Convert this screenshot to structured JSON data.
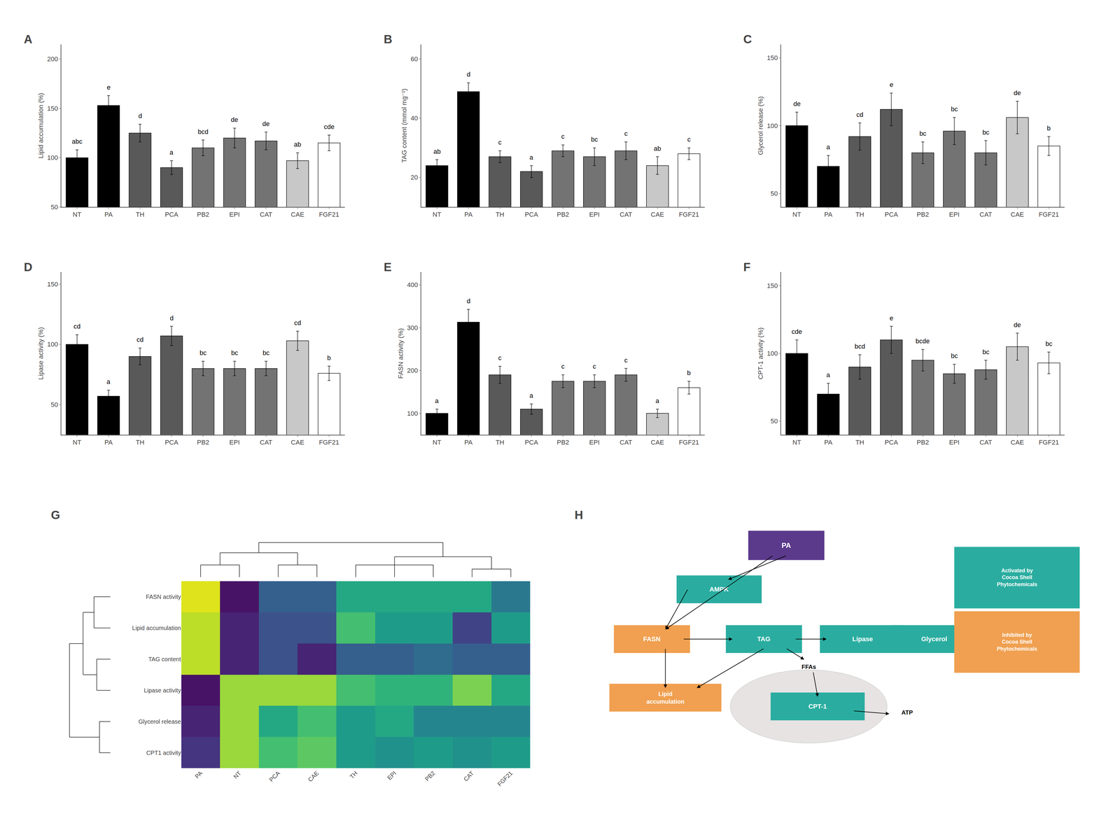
{
  "chart_data": [
    {
      "type": "bar",
      "title": "A",
      "ylabel": "Lipid accumulation (%)",
      "categories": [
        "NT",
        "PA",
        "TH",
        "PCA",
        "PB2",
        "EPI",
        "CAT",
        "CAE",
        "FGF21"
      ],
      "values": [
        100,
        153,
        125,
        90,
        110,
        120,
        117,
        97,
        115
      ],
      "errors": [
        8,
        10,
        9,
        7,
        8,
        10,
        9,
        8,
        8
      ],
      "annotations": [
        "abc",
        "e",
        "d",
        "a",
        "bcd",
        "de",
        "de",
        "ab",
        "cde"
      ],
      "colors": [
        "#000000",
        "#000000",
        "#595959",
        "#595959",
        "#737373",
        "#737373",
        "#737373",
        "#c8c8c8",
        "#ffffff"
      ],
      "ylim": [
        50,
        215
      ],
      "yticks": [
        50,
        100,
        150,
        200
      ],
      "grid": false
    },
    {
      "type": "bar",
      "title": "B",
      "ylabel": "TAG content (mmol mg⁻¹)",
      "categories": [
        "NT",
        "PA",
        "TH",
        "PCA",
        "PB2",
        "EPI",
        "CAT",
        "CAE",
        "FGF21"
      ],
      "values": [
        24,
        49,
        27,
        22,
        29,
        27,
        29,
        24,
        28
      ],
      "errors": [
        2,
        3,
        2,
        2,
        2,
        3,
        3,
        3,
        2
      ],
      "annotations": [
        "ab",
        "d",
        "c",
        "a",
        "c",
        "bc",
        "c",
        "ab",
        "c"
      ],
      "colors": [
        "#000000",
        "#000000",
        "#595959",
        "#595959",
        "#737373",
        "#737373",
        "#737373",
        "#c8c8c8",
        "#ffffff"
      ],
      "ylim": [
        10,
        65
      ],
      "yticks": [
        20,
        40,
        60
      ],
      "grid": false
    },
    {
      "type": "bar",
      "title": "C",
      "ylabel": "Glycerol release (%)",
      "categories": [
        "NT",
        "PA",
        "TH",
        "PCA",
        "PB2",
        "EPI",
        "CAT",
        "CAE",
        "FGF21"
      ],
      "values": [
        100,
        70,
        92,
        112,
        80,
        96,
        80,
        106,
        85
      ],
      "errors": [
        10,
        8,
        10,
        12,
        8,
        10,
        9,
        12,
        7
      ],
      "annotations": [
        "de",
        "a",
        "cd",
        "e",
        "bc",
        "bc",
        "bc",
        "de",
        "b"
      ],
      "colors": [
        "#000000",
        "#000000",
        "#595959",
        "#595959",
        "#737373",
        "#737373",
        "#737373",
        "#c8c8c8",
        "#ffffff"
      ],
      "ylim": [
        40,
        160
      ],
      "yticks": [
        50,
        100,
        150
      ],
      "grid": false
    },
    {
      "type": "bar",
      "title": "D",
      "ylabel": "Lipase activity (%)",
      "categories": [
        "NT",
        "PA",
        "TH",
        "PCA",
        "PB2",
        "EPI",
        "CAT",
        "CAE",
        "FGF21"
      ],
      "values": [
        100,
        57,
        90,
        107,
        80,
        80,
        80,
        103,
        76
      ],
      "errors": [
        8,
        5,
        7,
        8,
        6,
        6,
        6,
        8,
        6
      ],
      "annotations": [
        "cd",
        "a",
        "cd",
        "d",
        "bc",
        "bc",
        "bc",
        "cd",
        "b"
      ],
      "colors": [
        "#000000",
        "#000000",
        "#595959",
        "#595959",
        "#737373",
        "#737373",
        "#737373",
        "#c8c8c8",
        "#ffffff"
      ],
      "ylim": [
        25,
        160
      ],
      "yticks": [
        50,
        100,
        150
      ],
      "grid": false
    },
    {
      "type": "bar",
      "title": "E",
      "ylabel": "FASN activity (%)",
      "categories": [
        "NT",
        "PA",
        "TH",
        "PCA",
        "PB2",
        "EPI",
        "CAT",
        "CAE",
        "FGF21"
      ],
      "values": [
        100,
        313,
        190,
        110,
        175,
        175,
        190,
        100,
        160
      ],
      "errors": [
        10,
        30,
        20,
        12,
        15,
        15,
        15,
        10,
        15
      ],
      "annotations": [
        "a",
        "d",
        "c",
        "a",
        "c",
        "c",
        "c",
        "a",
        "b"
      ],
      "colors": [
        "#000000",
        "#000000",
        "#595959",
        "#595959",
        "#737373",
        "#737373",
        "#737373",
        "#c8c8c8",
        "#ffffff"
      ],
      "ylim": [
        50,
        430
      ],
      "yticks": [
        100,
        200,
        300,
        400
      ],
      "grid": false
    },
    {
      "type": "bar",
      "title": "F",
      "ylabel": "CPT-1 activity (%)",
      "categories": [
        "NT",
        "PA",
        "TH",
        "PCA",
        "PB2",
        "EPI",
        "CAT",
        "CAE",
        "FGF21"
      ],
      "values": [
        100,
        70,
        90,
        110,
        95,
        85,
        88,
        105,
        93
      ],
      "errors": [
        10,
        8,
        9,
        10,
        8,
        7,
        7,
        10,
        8
      ],
      "annotations": [
        "cde",
        "a",
        "bcd",
        "e",
        "bcde",
        "bc",
        "bc",
        "de",
        "bc"
      ],
      "colors": [
        "#000000",
        "#000000",
        "#595959",
        "#595959",
        "#737373",
        "#737373",
        "#737373",
        "#c8c8c8",
        "#ffffff"
      ],
      "ylim": [
        40,
        160
      ],
      "yticks": [
        50,
        100,
        150
      ],
      "grid": false
    },
    {
      "type": "heatmap",
      "title": "G",
      "x": [
        "PA",
        "NT",
        "PCA",
        "CAE",
        "TH",
        "EPI",
        "PB2",
        "CAT",
        "FGF21"
      ],
      "y": [
        "FASN activity",
        "Lipid accumulation",
        "TAG content",
        "Lipase activity",
        "Glycerol release",
        "CPT1 activity"
      ],
      "values": [
        [
          0.95,
          0.05,
          0.3,
          0.3,
          0.6,
          0.6,
          0.6,
          0.6,
          0.4
        ],
        [
          0.9,
          0.1,
          0.25,
          0.25,
          0.7,
          0.55,
          0.55,
          0.2,
          0.55
        ],
        [
          0.9,
          0.1,
          0.25,
          0.1,
          0.3,
          0.3,
          0.35,
          0.3,
          0.3
        ],
        [
          0.05,
          0.85,
          0.85,
          0.85,
          0.7,
          0.65,
          0.65,
          0.8,
          0.6
        ],
        [
          0.1,
          0.85,
          0.6,
          0.7,
          0.55,
          0.6,
          0.45,
          0.45,
          0.45
        ],
        [
          0.15,
          0.85,
          0.7,
          0.75,
          0.55,
          0.5,
          0.55,
          0.5,
          0.55
        ]
      ],
      "zlim": [
        0,
        1
      ],
      "color": "Viridis"
    },
    {
      "type": "diagram",
      "title": "H",
      "annotations": [
        "PA",
        "AMPK",
        "FASN",
        "TAG",
        "Lipase",
        "Glycerol",
        "Lipid\naccumulation",
        "CPT-1",
        "FFAs",
        "ATP",
        "Activated by\nCocoa Shell\nPhytochemicals",
        "Inhibited by\nCocoa Shell\nPhytochemicals"
      ],
      "colors": [
        "#5b3a8c",
        "#2aada0",
        "#f0a050",
        "#2aada0",
        "#2aada0",
        "#2aada0",
        "#f0a050",
        "#2aada0",
        "#000000",
        "#000000",
        "#2aada0",
        "#f0a050"
      ]
    }
  ]
}
